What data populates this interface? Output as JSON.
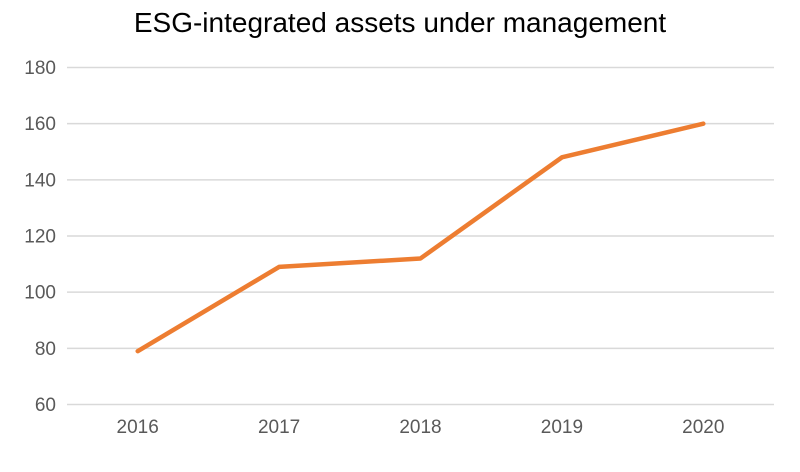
{
  "chart_data": {
    "type": "line",
    "title": "ESG-integrated assets under management",
    "categories": [
      "2016",
      "2017",
      "2018",
      "2019",
      "2020"
    ],
    "values": [
      79,
      109,
      112,
      148,
      160
    ],
    "xlabel": "",
    "ylabel": "",
    "ylim": [
      60,
      180
    ],
    "y_ticks": [
      60,
      80,
      100,
      120,
      140,
      160,
      180
    ],
    "grid": true,
    "legend": false,
    "colors": {
      "line": "#ED7D31",
      "gridline": "#D9D9D9",
      "tick_label": "#595959",
      "title": "#000000",
      "background": "#FFFFFF"
    }
  }
}
